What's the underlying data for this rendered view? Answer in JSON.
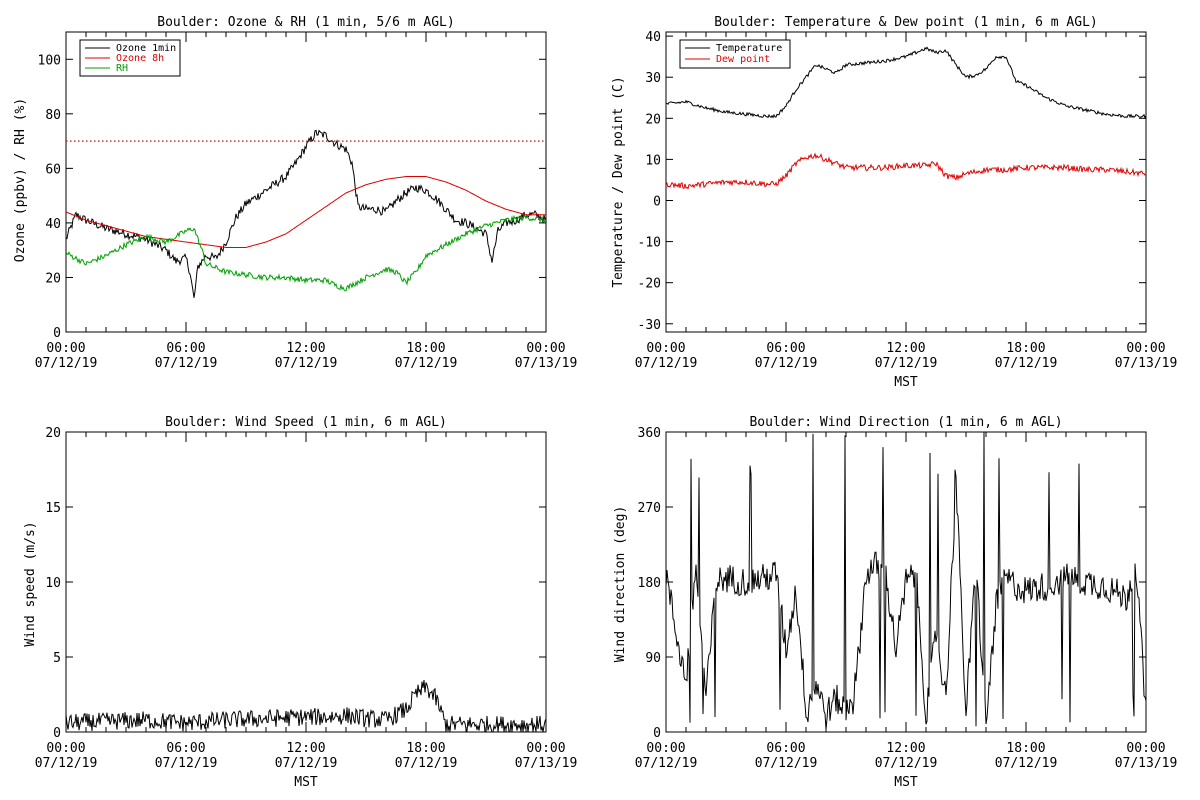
{
  "chart_data": [
    {
      "type": "line",
      "title": "Boulder: Ozone & RH (1 min, 5/6 m AGL)",
      "xlabel": "",
      "ylabel": "Ozone (ppbv) / RH (%)",
      "ylim": [
        0,
        110
      ],
      "yticks": [
        "0",
        "20",
        "40",
        "60",
        "80",
        "100"
      ],
      "yticks_values": [
        0,
        20,
        40,
        60,
        80,
        100
      ],
      "xticks": [
        {
          "time": "00:00",
          "date": "07/12/19"
        },
        {
          "time": "06:00",
          "date": "07/12/19"
        },
        {
          "time": "12:00",
          "date": "07/12/19"
        },
        {
          "time": "18:00",
          "date": "07/12/19"
        },
        {
          "time": "00:00",
          "date": "07/13/19"
        }
      ],
      "xlim_hours": [
        0,
        24
      ],
      "reference_line": {
        "y": 70,
        "color": "#e00000",
        "style": "dotted"
      },
      "legend": {
        "position": "top-left",
        "entries": [
          "Ozone 1min",
          "Ozone 8h",
          "RH"
        ]
      },
      "series": [
        {
          "name": "Ozone 1min",
          "color": "#000000",
          "noise": 1.6,
          "x": [
            0,
            0.5,
            1,
            2,
            3,
            3.5,
            4,
            5,
            5.5,
            6,
            6.2,
            6.4,
            6.6,
            7,
            7.5,
            8,
            8.5,
            9,
            10,
            11,
            11.5,
            12,
            12.5,
            13,
            13.5,
            14,
            14.3,
            14.6,
            15,
            15.5,
            16,
            16.5,
            17,
            17.5,
            18,
            18.5,
            19,
            19.5,
            20,
            20.5,
            21,
            21.3,
            21.6,
            22,
            22.5,
            23,
            23.5,
            24
          ],
          "y": [
            34,
            43,
            41,
            38,
            36,
            35,
            34,
            30,
            26,
            27,
            22,
            12,
            24,
            28,
            27,
            33,
            42,
            47,
            52,
            57,
            62,
            68,
            73,
            72,
            69,
            67,
            62,
            46,
            45,
            45,
            44,
            48,
            51,
            53,
            52,
            49,
            45,
            41,
            40,
            38,
            36,
            26,
            37,
            40,
            41,
            43,
            43,
            41
          ]
        },
        {
          "name": "Ozone 8h",
          "color": "#e00000",
          "noise": 0,
          "x": [
            0,
            1,
            2,
            3,
            4,
            5,
            6,
            7,
            8,
            9,
            10,
            11,
            12,
            13,
            14,
            15,
            16,
            17,
            18,
            19,
            20,
            21,
            22,
            23,
            24
          ],
          "y": [
            44,
            41,
            39,
            37,
            35,
            34,
            33,
            32,
            31,
            31,
            33,
            36,
            41,
            46,
            51,
            54,
            56,
            57,
            57,
            55,
            52,
            48,
            45,
            43,
            43
          ]
        },
        {
          "name": "RH",
          "color": "#00a000",
          "noise": 1.0,
          "x": [
            0,
            1,
            2,
            3,
            4,
            5,
            6,
            6.4,
            6.8,
            7,
            8,
            9,
            10,
            11,
            12,
            13,
            13.5,
            14,
            15,
            16,
            16.5,
            17,
            17.5,
            18,
            19,
            20,
            21,
            22,
            23,
            24
          ],
          "y": [
            29,
            25,
            28,
            32,
            35,
            33,
            37,
            38,
            30,
            25,
            22,
            21,
            20,
            20,
            19,
            19,
            17,
            16,
            20,
            23,
            22,
            18,
            22,
            28,
            32,
            36,
            39,
            41,
            42,
            41
          ]
        }
      ]
    },
    {
      "type": "line",
      "title": "Boulder: Temperature & Dew point (1 min, 6 m AGL)",
      "xlabel": "MST",
      "ylabel": "Temperature / Dew point (C)",
      "ylim": [
        -32,
        41
      ],
      "yticks": [
        "-30",
        "-20",
        "-10",
        "0",
        "10",
        "20",
        "30",
        "40"
      ],
      "yticks_values": [
        -30,
        -20,
        -10,
        0,
        10,
        20,
        30,
        40
      ],
      "xticks": [
        {
          "time": "00:00",
          "date": "07/12/19"
        },
        {
          "time": "06:00",
          "date": "07/12/19"
        },
        {
          "time": "12:00",
          "date": "07/12/19"
        },
        {
          "time": "18:00",
          "date": "07/12/19"
        },
        {
          "time": "00:00",
          "date": "07/13/19"
        }
      ],
      "xlim_hours": [
        0,
        24
      ],
      "legend": {
        "position": "top-left",
        "entries": [
          "Temperature",
          "Dew point"
        ]
      },
      "series": [
        {
          "name": "Temperature",
          "color": "#000000",
          "noise": 0.4,
          "x": [
            0,
            1,
            2,
            3,
            4,
            5,
            5.5,
            6,
            6.5,
            7,
            7.5,
            8,
            8.5,
            9,
            10,
            11,
            12,
            12.5,
            13,
            13.5,
            14,
            14.5,
            15,
            15.5,
            16,
            16.5,
            17,
            17.5,
            18,
            19,
            20,
            21,
            22,
            23,
            24
          ],
          "y": [
            23.5,
            24,
            22.5,
            21.5,
            21,
            20.5,
            20.5,
            23,
            27,
            30,
            33,
            32,
            31,
            33,
            33.5,
            34,
            35,
            36,
            37,
            36,
            36.5,
            33,
            30,
            30.5,
            32,
            35,
            35,
            29,
            28,
            25,
            23,
            22,
            21,
            20.5,
            20.5
          ]
        },
        {
          "name": "Dew point",
          "color": "#e00000",
          "noise": 0.7,
          "x": [
            0,
            1,
            2,
            3,
            4,
            5,
            5.5,
            6,
            6.5,
            7,
            7.5,
            8,
            8.5,
            9,
            10,
            11,
            12,
            13,
            13.5,
            14,
            14.5,
            15,
            16,
            17,
            18,
            19,
            20,
            21,
            22,
            23,
            24
          ],
          "y": [
            4,
            3.5,
            4,
            4.5,
            4.5,
            4,
            4,
            6,
            9,
            10.5,
            11,
            10,
            9,
            8,
            8,
            8,
            8.5,
            8.5,
            9,
            6,
            5.5,
            6.5,
            7.5,
            7.5,
            8,
            8,
            8,
            7.5,
            7.5,
            7,
            6.5
          ]
        }
      ]
    },
    {
      "type": "line",
      "title": "Boulder: Wind Speed (1 min, 6 m AGL)",
      "xlabel": "MST",
      "ylabel": "Wind speed (m/s)",
      "ylim": [
        0,
        20
      ],
      "yticks": [
        "0",
        "5",
        "10",
        "15",
        "20"
      ],
      "yticks_values": [
        0,
        5,
        10,
        15,
        20
      ],
      "xticks": [
        {
          "time": "00:00",
          "date": "07/12/19"
        },
        {
          "time": "06:00",
          "date": "07/12/19"
        },
        {
          "time": "12:00",
          "date": "07/12/19"
        },
        {
          "time": "18:00",
          "date": "07/12/19"
        },
        {
          "time": "00:00",
          "date": "07/13/19"
        }
      ],
      "xlim_hours": [
        0,
        24
      ],
      "series": [
        {
          "color": "#000000",
          "noise": 0.6,
          "x": [
            0,
            2,
            4,
            6,
            8,
            10,
            12,
            13,
            14,
            15,
            16,
            17,
            17.5,
            18,
            18.5,
            19,
            20,
            22,
            24
          ],
          "y": [
            0.6,
            0.7,
            0.8,
            0.6,
            0.8,
            0.9,
            1.0,
            1.0,
            1.1,
            0.9,
            0.8,
            1.5,
            2.5,
            3.0,
            2.2,
            0.5,
            0.5,
            0.5,
            0.5
          ]
        }
      ]
    },
    {
      "type": "line",
      "title": "Boulder: Wind Direction (1 min, 6 m AGL)",
      "xlabel": "MST",
      "ylabel": "Wind direction (deg)",
      "ylim": [
        0,
        360
      ],
      "yticks": [
        "0",
        "90",
        "180",
        "270",
        "360"
      ],
      "yticks_values": [
        0,
        90,
        180,
        270,
        360
      ],
      "xticks": [
        {
          "time": "00:00",
          "date": "07/12/19"
        },
        {
          "time": "06:00",
          "date": "07/12/19"
        },
        {
          "time": "12:00",
          "date": "07/12/19"
        },
        {
          "time": "18:00",
          "date": "07/12/19"
        },
        {
          "time": "00:00",
          "date": "07/13/19"
        }
      ],
      "xlim_hours": [
        0,
        24
      ],
      "series": [
        {
          "color": "#000000",
          "noise": 18,
          "x": [
            0,
            0.5,
            1,
            1.5,
            2,
            2.5,
            3,
            4,
            5,
            5.5,
            6,
            6.5,
            7,
            7.5,
            8,
            8.5,
            9,
            9.5,
            10,
            10.5,
            11,
            11.5,
            12,
            12.5,
            13,
            13.5,
            14,
            14.5,
            15,
            15.5,
            16,
            16.5,
            17,
            17.5,
            18,
            19,
            20,
            21,
            22,
            23,
            23.5,
            24
          ],
          "y": [
            190,
            120,
            60,
            200,
            40,
            180,
            185,
            180,
            185,
            190,
            100,
            170,
            30,
            60,
            20,
            40,
            25,
            60,
            190,
            200,
            185,
            100,
            180,
            190,
            20,
            120,
            40,
            300,
            20,
            200,
            10,
            150,
            185,
            175,
            170,
            175,
            185,
            180,
            175,
            160,
            200,
            20
          ],
          "spikes": true
        }
      ]
    }
  ]
}
